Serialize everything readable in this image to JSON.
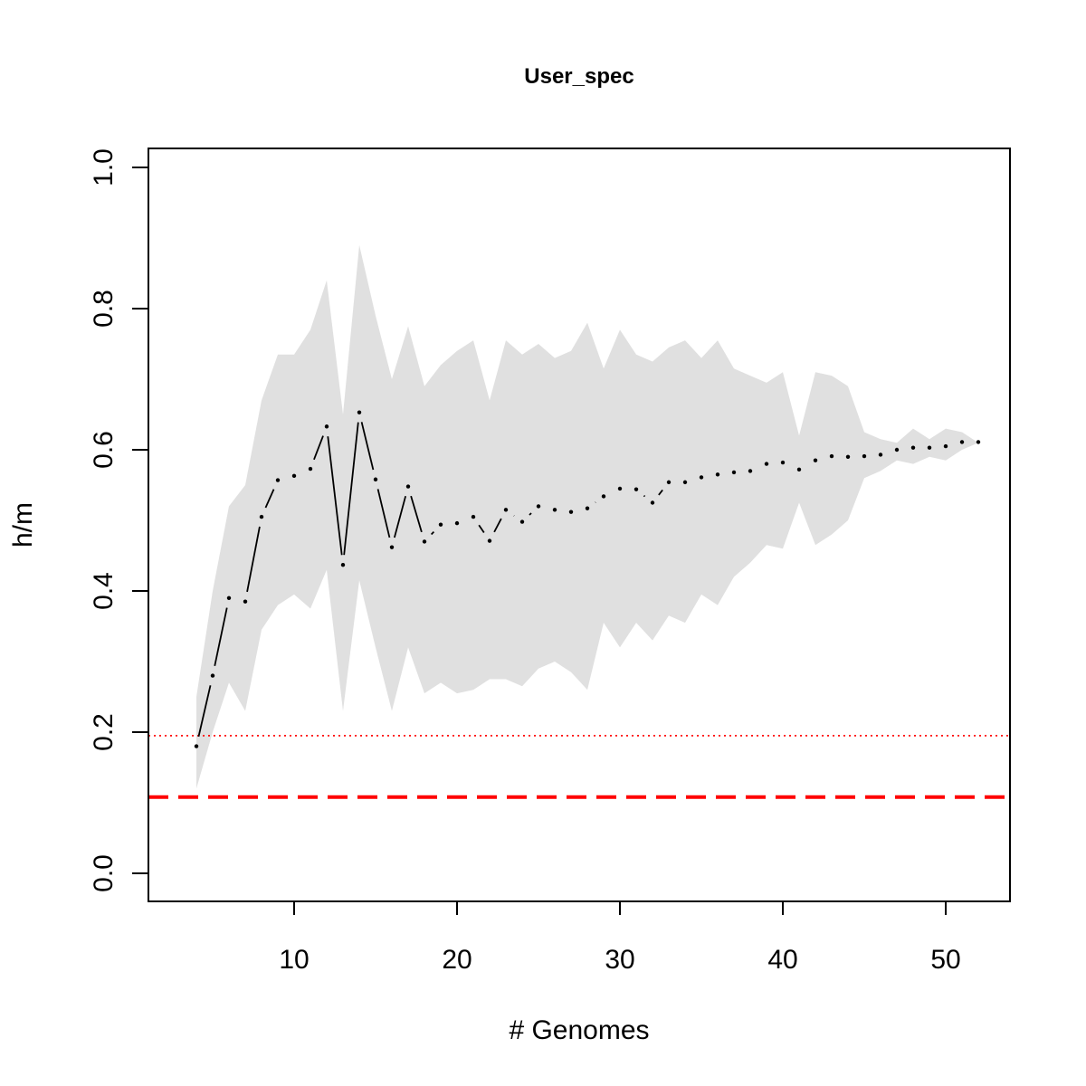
{
  "chart_data": {
    "type": "line",
    "title": "User_spec",
    "xlabel": "# Genomes",
    "ylabel": "h/m",
    "xlim": [
      1.1,
      54
    ],
    "ylim": [
      -0.04,
      1.03
    ],
    "x_ticks": [
      10,
      20,
      30,
      40,
      50
    ],
    "y_ticks": [
      0.0,
      0.2,
      0.4,
      0.6,
      0.8,
      1.0
    ],
    "x_tick_labels": [
      "10",
      "20",
      "30",
      "40",
      "50"
    ],
    "y_tick_labels": [
      "0.0",
      "0.2",
      "0.4",
      "0.6",
      "0.8",
      "1.0"
    ],
    "grid": false,
    "legend": "none",
    "series": [
      {
        "role": "mean",
        "style": "dotted-points-with-segments",
        "color": "#000000",
        "x": [
          4,
          5,
          6,
          7,
          8,
          9,
          10,
          11,
          12,
          13,
          14,
          15,
          16,
          17,
          18,
          19,
          20,
          21,
          22,
          23,
          24,
          25,
          26,
          27,
          28,
          29,
          30,
          31,
          32,
          33,
          34,
          35,
          36,
          37,
          38,
          39,
          40,
          41,
          42,
          43,
          44,
          45,
          46,
          47,
          48,
          49,
          50,
          51,
          52
        ],
        "y": [
          0.18,
          0.28,
          0.39,
          0.385,
          0.505,
          0.557,
          0.563,
          0.573,
          0.633,
          0.437,
          0.653,
          0.558,
          0.462,
          0.548,
          0.47,
          0.494,
          0.496,
          0.505,
          0.471,
          0.515,
          0.498,
          0.52,
          0.515,
          0.512,
          0.517,
          0.534,
          0.545,
          0.544,
          0.525,
          0.554,
          0.554,
          0.561,
          0.565,
          0.568,
          0.57,
          0.58,
          0.582,
          0.572,
          0.585,
          0.591,
          0.59,
          0.591,
          0.593,
          0.6,
          0.603,
          0.603,
          0.605,
          0.611,
          0.611
        ]
      }
    ],
    "band": {
      "color": "#e0e0e0",
      "x": [
        4,
        5,
        6,
        7,
        8,
        9,
        10,
        11,
        12,
        13,
        14,
        15,
        16,
        17,
        18,
        19,
        20,
        21,
        22,
        23,
        24,
        25,
        26,
        27,
        28,
        29,
        30,
        31,
        32,
        33,
        34,
        35,
        36,
        37,
        38,
        39,
        40,
        41,
        42,
        43,
        44,
        45,
        46,
        47,
        48,
        49,
        50,
        51,
        52
      ],
      "upper": [
        0.25,
        0.4,
        0.52,
        0.55,
        0.67,
        0.735,
        0.735,
        0.77,
        0.84,
        0.65,
        0.89,
        0.79,
        0.7,
        0.775,
        0.69,
        0.72,
        0.74,
        0.755,
        0.67,
        0.755,
        0.735,
        0.75,
        0.73,
        0.74,
        0.78,
        0.715,
        0.77,
        0.735,
        0.725,
        0.745,
        0.755,
        0.73,
        0.755,
        0.715,
        0.705,
        0.695,
        0.71,
        0.62,
        0.71,
        0.705,
        0.69,
        0.625,
        0.615,
        0.61,
        0.63,
        0.615,
        0.63,
        0.625,
        0.61
      ],
      "lower": [
        0.12,
        0.2,
        0.27,
        0.23,
        0.345,
        0.38,
        0.395,
        0.375,
        0.43,
        0.23,
        0.415,
        0.32,
        0.23,
        0.32,
        0.255,
        0.27,
        0.255,
        0.26,
        0.275,
        0.275,
        0.265,
        0.29,
        0.3,
        0.285,
        0.26,
        0.355,
        0.32,
        0.355,
        0.33,
        0.365,
        0.355,
        0.395,
        0.38,
        0.42,
        0.44,
        0.465,
        0.46,
        0.525,
        0.465,
        0.48,
        0.5,
        0.56,
        0.57,
        0.585,
        0.58,
        0.59,
        0.585,
        0.6,
        0.61
      ]
    },
    "reference_lines": [
      {
        "y": 0.195,
        "style": "dotted",
        "color": "#ff0000"
      },
      {
        "y": 0.108,
        "style": "dashed",
        "color": "#ff0000"
      }
    ]
  }
}
